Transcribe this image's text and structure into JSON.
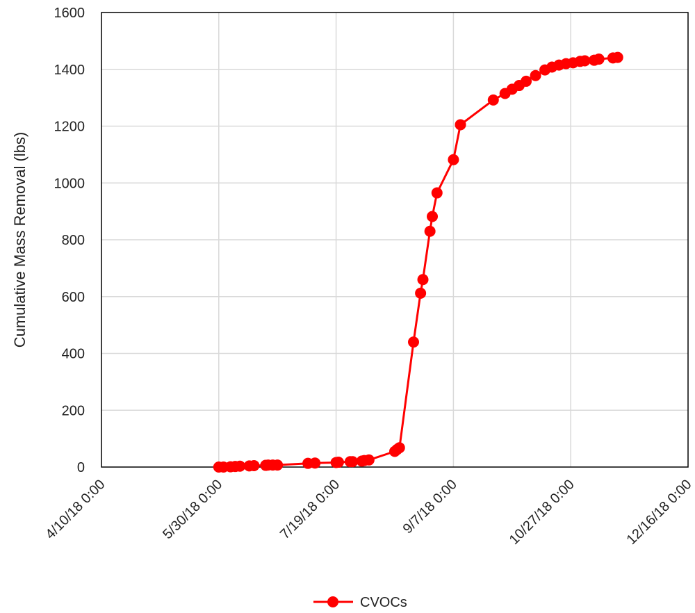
{
  "chart_data": {
    "type": "line",
    "title": "",
    "xlabel": "",
    "ylabel": "Cumulative Mass Removal (lbs)",
    "xlim": [
      "2018-04-10",
      "2018-12-16"
    ],
    "ylim": [
      0,
      1600
    ],
    "x_ticks": [
      "4/10/18 0:00",
      "5/30/18 0:00",
      "7/19/18 0:00",
      "9/7/18 0:00",
      "10/27/18 0:00",
      "12/16/18 0:00"
    ],
    "y_ticks": [
      "0",
      "200",
      "400",
      "600",
      "800",
      "1000",
      "1200",
      "1400",
      "1600"
    ],
    "grid": true,
    "legend_position": "bottom",
    "series": [
      {
        "name": "CVOCs",
        "color": "#ff0000",
        "marker": "circle",
        "x": [
          "2018-05-30",
          "2018-06-01",
          "2018-06-04",
          "2018-06-06",
          "2018-06-08",
          "2018-06-12",
          "2018-06-14",
          "2018-06-19",
          "2018-06-20",
          "2018-06-22",
          "2018-06-24",
          "2018-07-07",
          "2018-07-10",
          "2018-07-19",
          "2018-07-20",
          "2018-07-25",
          "2018-07-26",
          "2018-07-30",
          "2018-07-31",
          "2018-08-02",
          "2018-08-13",
          "2018-08-14",
          "2018-08-15",
          "2018-08-21",
          "2018-08-24",
          "2018-08-25",
          "2018-08-28",
          "2018-08-29",
          "2018-08-31",
          "2018-09-07",
          "2018-09-10",
          "2018-09-24",
          "2018-09-29",
          "2018-10-02",
          "2018-10-05",
          "2018-10-08",
          "2018-10-12",
          "2018-10-16",
          "2018-10-19",
          "2018-10-22",
          "2018-10-25",
          "2018-10-28",
          "2018-10-31",
          "2018-11-02",
          "2018-11-06",
          "2018-11-08",
          "2018-11-14",
          "2018-11-16"
        ],
        "y": [
          0,
          0,
          1,
          2,
          3,
          4,
          5,
          6,
          7,
          7,
          7,
          13,
          14,
          16,
          17,
          19,
          19,
          21,
          23,
          25,
          55,
          62,
          68,
          440,
          612,
          660,
          830,
          882,
          965,
          1082,
          1205,
          1292,
          1315,
          1330,
          1343,
          1358,
          1378,
          1398,
          1408,
          1415,
          1420,
          1423,
          1428,
          1430,
          1432,
          1436,
          1440,
          1442
        ]
      }
    ]
  }
}
